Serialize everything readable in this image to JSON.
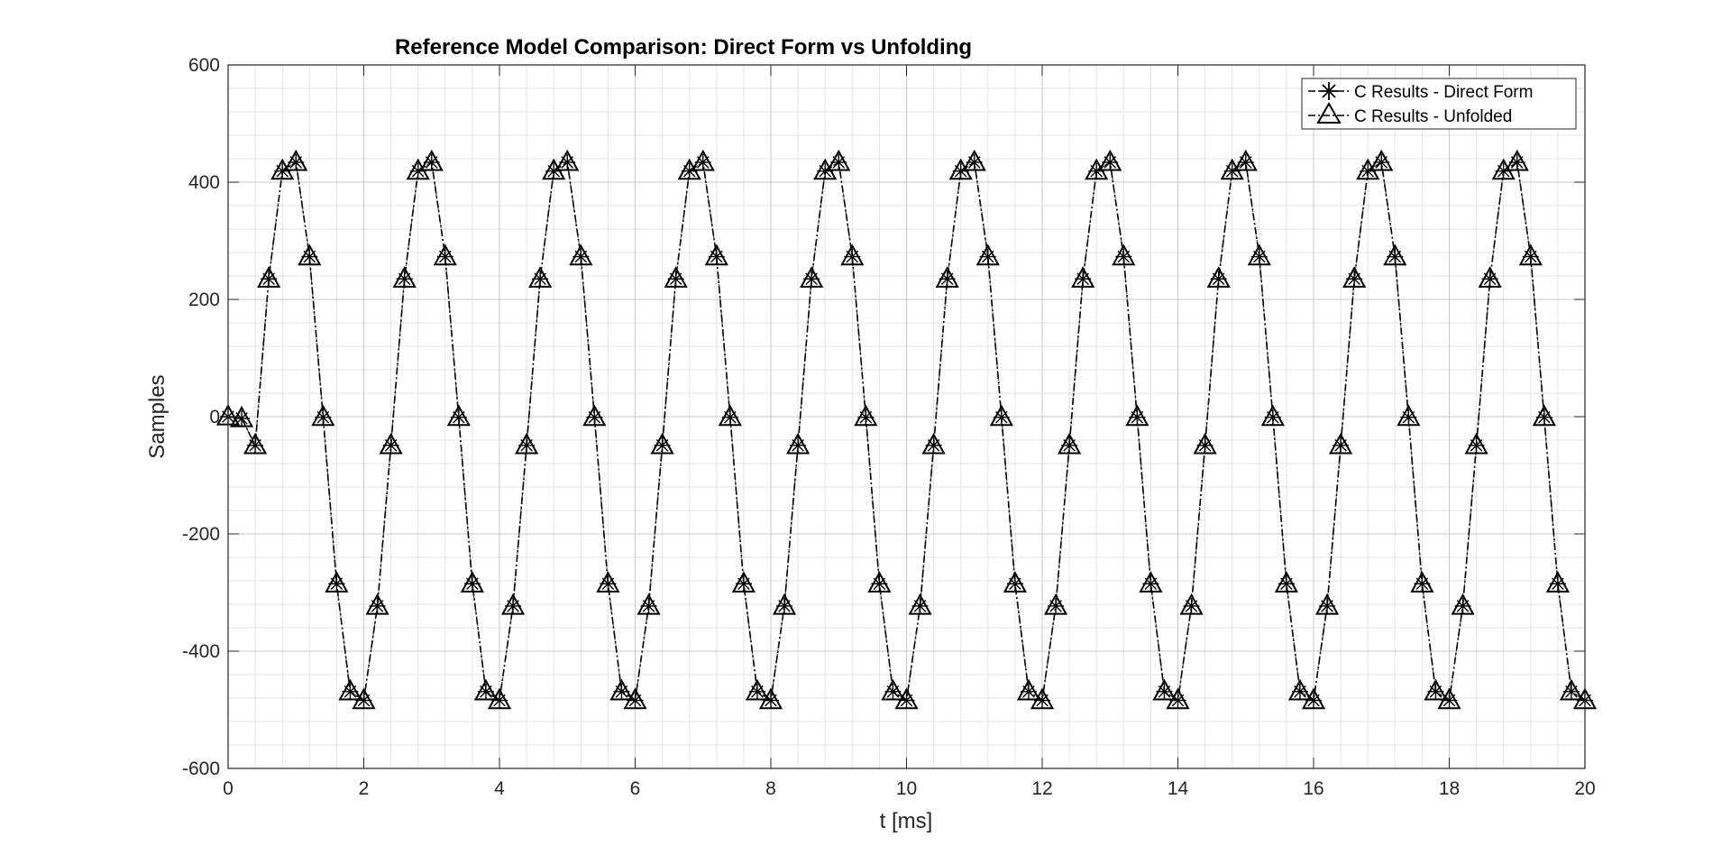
{
  "chart_data": {
    "type": "line",
    "title": "Reference Model Comparison: Direct Form vs Unfolding",
    "xlabel": "t [ms]",
    "ylabel": "Samples",
    "xlim": [
      0,
      20
    ],
    "ylim": [
      -600,
      600
    ],
    "xticks": [
      "0",
      "2",
      "4",
      "6",
      "8",
      "10",
      "12",
      "14",
      "16",
      "18",
      "20"
    ],
    "yticks": [
      "-600",
      "-400",
      "-200",
      "0",
      "200",
      "400",
      "600"
    ],
    "x_minor_step": 0.4,
    "y_minor_step": 40,
    "grid": true,
    "legend_position": "top-right",
    "signal_model": {
      "start_ms": 0.4,
      "period_ms": 2,
      "amplitude": 475,
      "offset": -25,
      "sample_step_ms": 0.2
    },
    "x": [
      0,
      0.2,
      0.4,
      0.6,
      0.8,
      1.0,
      1.2,
      1.4,
      1.6,
      1.8,
      2.0,
      2.2,
      2.4,
      2.6,
      2.8,
      3.0,
      3.2,
      3.4,
      3.6,
      3.8,
      4.0,
      4.2,
      4.4,
      4.6,
      4.8,
      5.0,
      5.2,
      5.4,
      5.6,
      5.8,
      6.0,
      6.2,
      6.4,
      6.6,
      6.8,
      7.0,
      7.2,
      7.4,
      7.6,
      7.8,
      8.0,
      8.2,
      8.4,
      8.6,
      8.8,
      9.0,
      9.2,
      9.4,
      9.6,
      9.8,
      10.0,
      10.2,
      10.4,
      10.6,
      10.8,
      11.0,
      11.2,
      11.4,
      11.6,
      11.8,
      12.0,
      12.2,
      12.4,
      12.6,
      12.8,
      13.0,
      13.2,
      13.4,
      13.6,
      13.8,
      14.0,
      14.2,
      14.4,
      14.6,
      14.8,
      15.0,
      15.2,
      15.4,
      15.6,
      15.8,
      16.0,
      16.2,
      16.4,
      16.6,
      16.8,
      17.0,
      17.2,
      17.4,
      17.6,
      17.8,
      18.0,
      18.2,
      18.4,
      18.6,
      18.8,
      19.0,
      19.2,
      19.4,
      19.6,
      19.8,
      20.0
    ],
    "series": [
      {
        "name": "C Results - Direct Form",
        "marker": "asterisk",
        "linestyle": "dash-dot",
        "color": "#000000"
      },
      {
        "name": "C Results - Unfolded",
        "marker": "triangle",
        "linestyle": "dash-dot",
        "color": "#000000"
      }
    ]
  }
}
